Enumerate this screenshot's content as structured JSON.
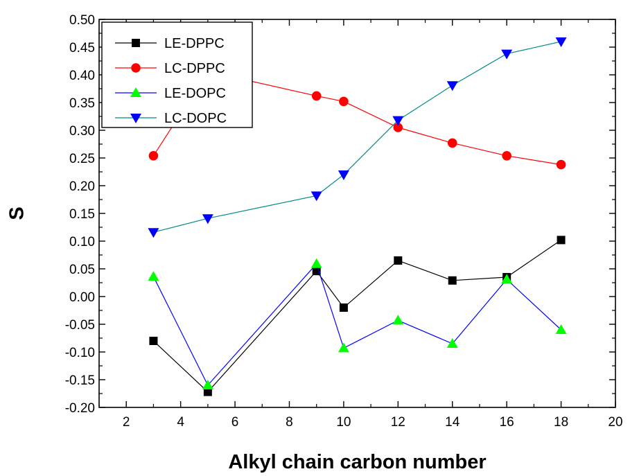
{
  "chart_data": {
    "type": "line",
    "title": "",
    "xlabel": "Alkyl chain carbon number",
    "ylabel": "S",
    "xlim": [
      1,
      20
    ],
    "ylim": [
      -0.2,
      0.5
    ],
    "x_ticks": [
      2,
      4,
      6,
      8,
      10,
      12,
      14,
      16,
      18,
      20
    ],
    "x_tick_labels": [
      "2",
      "4",
      "6",
      "8",
      "10",
      "12",
      "14",
      "16",
      "18",
      "20"
    ],
    "y_ticks": [
      -0.2,
      -0.15,
      -0.1,
      -0.05,
      0.0,
      0.05,
      0.1,
      0.15,
      0.2,
      0.25,
      0.3,
      0.35,
      0.4,
      0.45,
      0.5
    ],
    "y_tick_labels": [
      "-0.20",
      "-0.15",
      "-0.10",
      "-0.05",
      "0.00",
      "0.05",
      "0.10",
      "0.15",
      "0.20",
      "0.25",
      "0.30",
      "0.35",
      "0.40",
      "0.45",
      "0.50"
    ],
    "x_positions": [
      3,
      5,
      9,
      10,
      12,
      14,
      16,
      18
    ],
    "grid": false,
    "legend_position": "top-left",
    "series": [
      {
        "name": "LE-DPPC",
        "marker": "square",
        "marker_color": "#000000",
        "line_color": "#000000",
        "values": [
          -0.08,
          -0.172,
          0.046,
          -0.02,
          0.065,
          0.029,
          0.035,
          0.102
        ]
      },
      {
        "name": "LC-DPPC",
        "marker": "circle",
        "marker_color": "#ff0000",
        "line_color": "#ff0000",
        "values": [
          0.254,
          0.406,
          0.362,
          0.352,
          0.305,
          0.277,
          0.254,
          0.238
        ]
      },
      {
        "name": "LE-DOPC",
        "marker": "triangle-up",
        "marker_color": "#00ff00",
        "line_color": "#0000ff",
        "values": [
          0.036,
          -0.16,
          0.059,
          -0.093,
          -0.043,
          -0.085,
          0.031,
          -0.06
        ]
      },
      {
        "name": "LC-DOPC",
        "marker": "triangle-down",
        "marker_color": "#0000ff",
        "line_color": "#008b8b",
        "values": [
          0.116,
          0.141,
          0.182,
          0.22,
          0.318,
          0.381,
          0.438,
          0.46
        ]
      }
    ]
  }
}
